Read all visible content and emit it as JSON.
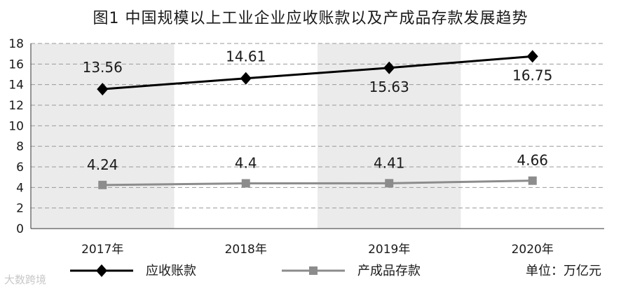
{
  "chart_data": {
    "type": "line",
    "title": "图1  中国规模以上工业企业应收账款以及产成品存款发展趋势",
    "categories": [
      "2017年",
      "2018年",
      "2019年",
      "2020年"
    ],
    "series": [
      {
        "name": "应收账款",
        "values": [
          13.56,
          14.61,
          15.63,
          16.75
        ],
        "color": "#000000",
        "marker": "diamond"
      },
      {
        "name": "产成品存款",
        "values": [
          4.24,
          4.4,
          4.41,
          4.66
        ],
        "color": "#8c8c8c",
        "marker": "square"
      }
    ],
    "data_labels": [
      [
        "13.56",
        "14.61",
        "15.63",
        "16.75"
      ],
      [
        "4.24",
        "4.4",
        "4.41",
        "4.66"
      ]
    ],
    "ylim": [
      0,
      18
    ],
    "yticks": [
      0,
      2,
      4,
      6,
      8,
      10,
      12,
      14,
      16,
      18
    ],
    "grid": "horizontal dashed",
    "band_color": "#ebebeb",
    "legend_position": "bottom",
    "unit_note": "单位：万亿元"
  },
  "watermark": "大数跨境"
}
